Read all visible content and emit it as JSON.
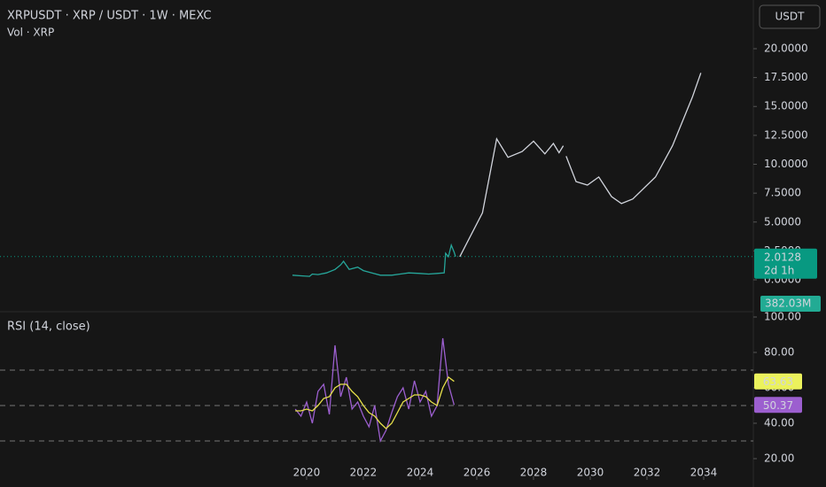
{
  "currency_button": "USDT",
  "chart_data": [
    {
      "type": "line",
      "title": "XRPUSDT · XRP / USDT · 1W · MEXC",
      "subtitle": "Vol · XRP",
      "xlim": [
        2009.19,
        2035.75
      ],
      "xticks": [
        2020,
        2022,
        2024,
        2026,
        2028,
        2030,
        2032,
        2034
      ],
      "ylim": [
        -2.45,
        23.6
      ],
      "yticks": [
        {
          "value": 0,
          "label": "0.0000"
        },
        {
          "value": 2.5,
          "label": "2.5000"
        },
        {
          "value": 5,
          "label": "5.0000"
        },
        {
          "value": 7.5,
          "label": "7.5000"
        },
        {
          "value": 10,
          "label": "10.0000"
        },
        {
          "value": 12.5,
          "label": "12.5000"
        },
        {
          "value": 15,
          "label": "15.0000"
        },
        {
          "value": 17.5,
          "label": "17.5000"
        },
        {
          "value": 20,
          "label": "20.0000"
        }
      ],
      "series": [
        {
          "color": "#26a69a",
          "x": [
            2019.5,
            2019.8,
            2020.1,
            2020.2,
            2020.4,
            2020.7,
            2021.0,
            2021.2,
            2021.3,
            2021.5,
            2021.8,
            2022.0,
            2022.3,
            2022.6,
            2023.0,
            2023.3,
            2023.6,
            2024.0,
            2024.3,
            2024.6,
            2024.85,
            2024.9,
            2025.0,
            2025.1,
            2025.2,
            2025.25
          ],
          "values": [
            0.4,
            0.35,
            0.3,
            0.5,
            0.45,
            0.6,
            0.9,
            1.3,
            1.6,
            0.9,
            1.1,
            0.8,
            0.6,
            0.4,
            0.4,
            0.5,
            0.6,
            0.55,
            0.5,
            0.55,
            0.6,
            2.3,
            2.0,
            3.0,
            2.4,
            2.0128
          ]
        },
        {
          "color": "#d1d4dc",
          "x": [
            2025.4,
            2026.2,
            2026.7,
            2027.1,
            2027.6,
            2028.0,
            2028.4,
            2028.7,
            2028.9,
            2029.05,
            2029.1,
            2029.15,
            2029.5,
            2029.9,
            2030.3,
            2030.75,
            2031.1,
            2031.5,
            2032.3,
            2032.9,
            2033.6,
            2033.9
          ],
          "values": [
            2.0,
            5.8,
            12.2,
            10.6,
            11.1,
            12.0,
            10.9,
            11.8,
            11.0,
            11.6,
            null,
            10.7,
            8.5,
            8.2,
            8.9,
            7.2,
            6.6,
            7.0,
            8.9,
            11.6,
            15.8,
            17.9
          ]
        }
      ],
      "last_price": 2.0128,
      "countdown": "2d 1h",
      "volume_label": "382.03M"
    },
    {
      "type": "line",
      "title": "RSI (14, close)",
      "xlim": [
        2009.19,
        2035.75
      ],
      "ylim": [
        10,
        103
      ],
      "yticks": [
        {
          "value": 20,
          "label": "20.00"
        },
        {
          "value": 40,
          "label": "40.00"
        },
        {
          "value": 60,
          "label": "60.00"
        },
        {
          "value": 80,
          "label": "80.00"
        },
        {
          "value": 100,
          "label": "100.00"
        }
      ],
      "levels": [
        70,
        50,
        30
      ],
      "series": [
        {
          "color": "#9c5fcf",
          "x": [
            2019.6,
            2019.8,
            2020.0,
            2020.2,
            2020.4,
            2020.6,
            2020.8,
            2021.0,
            2021.2,
            2021.4,
            2021.6,
            2021.8,
            2022.0,
            2022.2,
            2022.4,
            2022.6,
            2022.8,
            2023.0,
            2023.2,
            2023.4,
            2023.6,
            2023.8,
            2024.0,
            2024.2,
            2024.4,
            2024.6,
            2024.8,
            2025.0,
            2025.2
          ],
          "values": [
            48,
            44,
            52,
            40,
            58,
            62,
            45,
            84,
            55,
            66,
            48,
            52,
            44,
            38,
            50,
            30,
            36,
            46,
            55,
            60,
            48,
            64,
            52,
            58,
            44,
            50,
            88,
            62,
            50.37
          ]
        },
        {
          "color": "#e6e04a",
          "x": [
            2019.6,
            2019.8,
            2020.0,
            2020.2,
            2020.4,
            2020.6,
            2020.8,
            2021.0,
            2021.2,
            2021.4,
            2021.6,
            2021.8,
            2022.0,
            2022.2,
            2022.4,
            2022.6,
            2022.8,
            2023.0,
            2023.2,
            2023.4,
            2023.6,
            2023.8,
            2024.0,
            2024.2,
            2024.4,
            2024.6,
            2024.8,
            2025.0,
            2025.2
          ],
          "values": [
            47,
            47,
            48,
            47,
            50,
            54,
            55,
            60,
            62,
            62,
            58,
            55,
            50,
            46,
            44,
            40,
            37,
            40,
            46,
            52,
            54,
            56,
            56,
            55,
            52,
            50,
            60,
            66,
            63.63
          ]
        }
      ]
    }
  ]
}
